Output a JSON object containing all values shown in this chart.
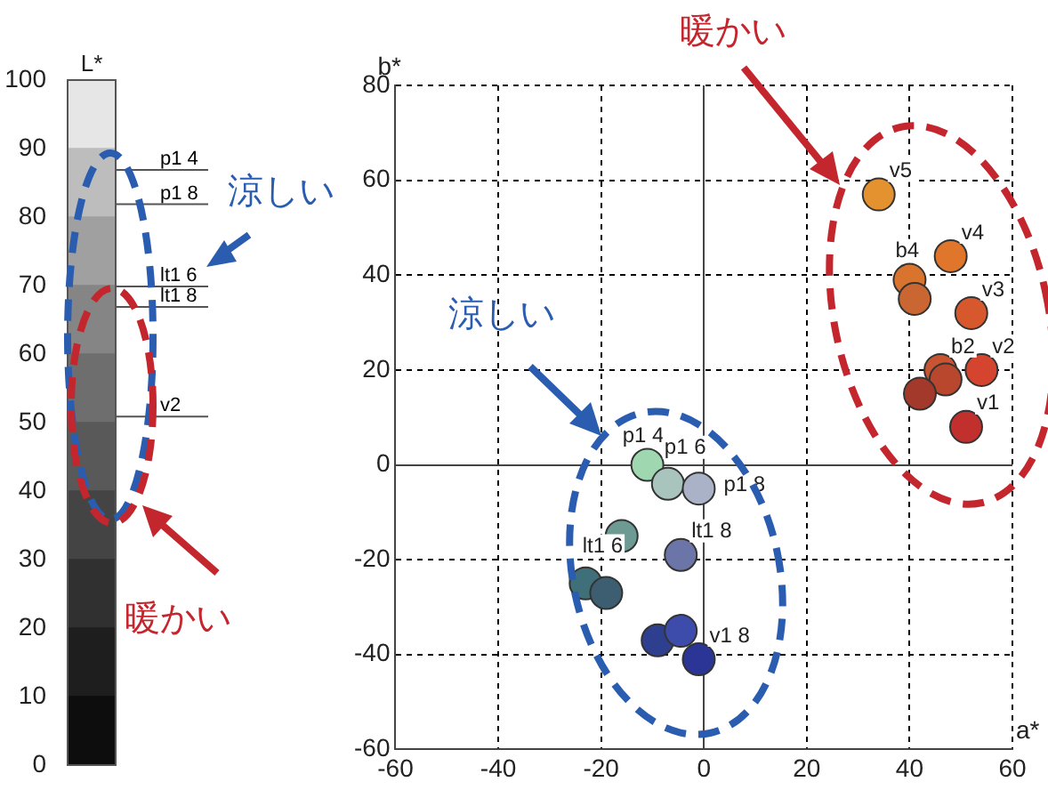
{
  "chart_data": [
    {
      "type": "bar",
      "stacked": true,
      "title": "L*",
      "categories": [
        null
      ],
      "ylim": [
        0,
        100
      ],
      "yticks": [
        0,
        10,
        20,
        30,
        40,
        50,
        60,
        70,
        80,
        90,
        100
      ],
      "grid": false,
      "legend": false,
      "tick_labels": "y",
      "series": [
        {
          "color": "#0d0d0d",
          "values": [
            10
          ]
        },
        {
          "color": "#1e1e1e",
          "values": [
            10
          ]
        },
        {
          "color": "#303030",
          "values": [
            10
          ]
        },
        {
          "color": "#444444",
          "values": [
            10
          ]
        },
        {
          "color": "#595959",
          "values": [
            10
          ]
        },
        {
          "color": "#6e6e6e",
          "values": [
            10
          ]
        },
        {
          "color": "#858585",
          "values": [
            10
          ]
        },
        {
          "color": "#a0a0a0",
          "values": [
            10
          ]
        },
        {
          "color": "#bdbdbd",
          "values": [
            10
          ]
        },
        {
          "color": "#e6e6e6",
          "values": [
            10
          ]
        }
      ],
      "annotations": [
        "p1 4",
        "p1 8",
        "lt1 6",
        "lt1 8",
        "v2",
        "涼しい",
        "暖かい"
      ]
    },
    {
      "type": "scatter",
      "xlabel": "a*",
      "ylabel": "b*",
      "xlim": [
        -60,
        60
      ],
      "ylim": [
        -60,
        80
      ],
      "xticks": [
        -60,
        -40,
        -20,
        0,
        20,
        40,
        60
      ],
      "yticks": [
        -60,
        -40,
        -20,
        0,
        20,
        40,
        60,
        80
      ],
      "grid": true,
      "legend": false,
      "marker": "circle",
      "x": [
        -11,
        -7,
        -1,
        -16,
        -4.5,
        -23,
        -19,
        -9,
        -4.5,
        -1,
        34,
        48,
        40,
        41,
        52,
        54,
        46,
        47,
        42,
        51
      ],
      "values": [
        0,
        -4,
        -5,
        -15,
        -19,
        -25,
        -27,
        -37,
        -35,
        -41,
        57,
        44,
        39,
        35,
        32,
        20,
        20,
        18,
        15,
        8
      ],
      "colors": [
        "#9fd8b0",
        "#a9c4bc",
        "#aab2c8",
        "#6e9a94",
        "#6b75a8",
        "#3f6f78",
        "#3d5e70",
        "#2f3f8f",
        "#3d4caa",
        "#2a3596",
        "#e3922f",
        "#e0752c",
        "#d9742f",
        "#c96632",
        "#d8582e",
        "#d4442f",
        "#c95431",
        "#b9472e",
        "#a3392a",
        "#c2302d"
      ],
      "annotations": [
        {
          "text": "p1 4",
          "x": -11,
          "y": 0
        },
        {
          "text": "p1 6",
          "x": -7,
          "y": -4
        },
        {
          "text": "p1 8",
          "x": -1,
          "y": -5
        },
        {
          "text": "lt1 6",
          "x": -16,
          "y": -15
        },
        {
          "text": "lt1 8",
          "x": -4.5,
          "y": -19
        },
        {
          "text": "v1 8",
          "x": -1,
          "y": -41
        },
        {
          "text": "v5",
          "x": 34,
          "y": 57
        },
        {
          "text": "v4",
          "x": 48,
          "y": 44
        },
        {
          "text": "b4",
          "x": 40,
          "y": 39
        },
        {
          "text": "v3",
          "x": 52,
          "y": 32
        },
        {
          "text": "v2",
          "x": 54,
          "y": 20
        },
        {
          "text": "b2",
          "x": 46,
          "y": 20
        },
        {
          "text": "v1",
          "x": 51,
          "y": 8
        },
        "涼しい",
        "暖かい"
      ]
    }
  ]
}
